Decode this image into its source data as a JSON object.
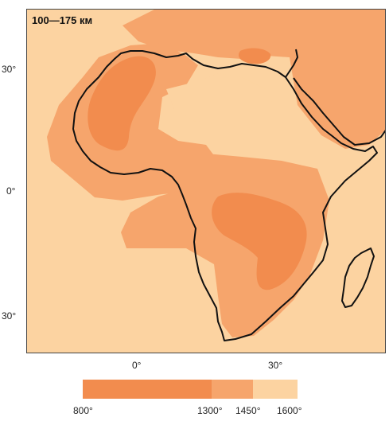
{
  "map": {
    "title": "100—175 км",
    "lat_labels": [
      "30°",
      "0°",
      "30°"
    ],
    "lon_labels": [
      "0°",
      "30°"
    ]
  },
  "legend": {
    "colors": [
      "#f28c4e",
      "#f6a56c",
      "#fcd3a1"
    ],
    "ticks": [
      "800°",
      "1300°",
      "1450°",
      "1600°"
    ]
  },
  "colors": {
    "hot": "#f28c4e",
    "mid": "#f6a56c",
    "cool": "#fcd3a1",
    "coast": "#111111"
  }
}
